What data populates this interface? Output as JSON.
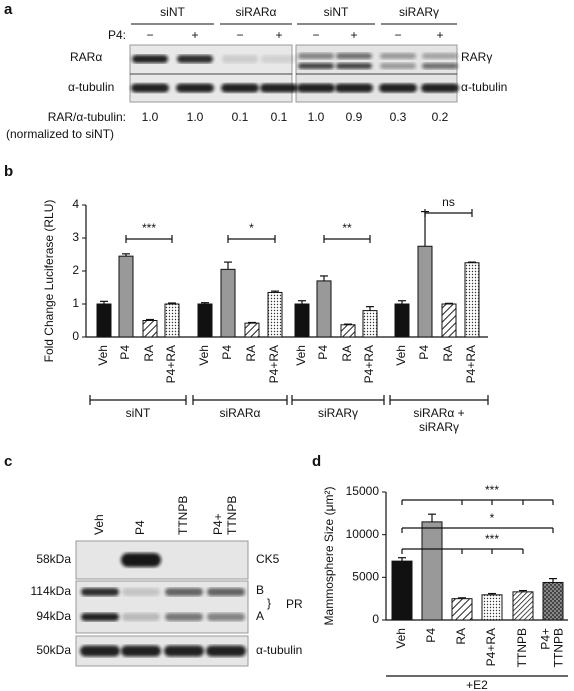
{
  "panel_labels": [
    "a",
    "b",
    "c",
    "d"
  ],
  "panel_a": {
    "headers": [
      "siNT",
      "siRARα",
      "siNT",
      "siRARγ"
    ],
    "p4_label": "P4:",
    "signs": [
      "−",
      "+",
      "−",
      "+",
      "−",
      "+",
      "−",
      "+"
    ],
    "left_labels": [
      "RARα",
      "α-tubulin"
    ],
    "right_labels": [
      "RARγ",
      "α-tubulin"
    ],
    "ratio_label": "RAR/α-tubulin:",
    "ratios": [
      "1.0",
      "1.0",
      "0.1",
      "0.1",
      "1.0",
      "0.9",
      "0.3",
      "0.2"
    ],
    "note": "(normalized to siNT)"
  },
  "panel_c": {
    "lanes": [
      [
        "Veh"
      ],
      [
        "P4"
      ],
      [
        "TTNPB"
      ],
      [
        "P4+",
        "TTNPB"
      ]
    ],
    "sizes": [
      "58kDa",
      "114kDa",
      "94kDa",
      "50kDa"
    ],
    "right_labels": [
      "CK5",
      "B",
      "A",
      "PR",
      "α-tubulin"
    ]
  },
  "chart_data": [
    {
      "type": "grouped-bar",
      "y_label": "Fold Change Luciferase (RLU)",
      "ylim": [
        0,
        4
      ],
      "yticks": [
        0,
        1,
        2,
        3,
        4
      ],
      "groups": [
        {
          "label_lines": [
            "siNT"
          ],
          "categories": [
            "Veh",
            "P4",
            "RA",
            "P4+RA"
          ],
          "values": [
            1.0,
            2.45,
            0.5,
            1.0
          ],
          "errors": [
            0.08,
            0.07,
            0.03,
            0.03
          ],
          "significance": "***"
        },
        {
          "label_lines": [
            "siRARα"
          ],
          "categories": [
            "Veh",
            "P4",
            "RA",
            "P4+RA"
          ],
          "values": [
            1.0,
            2.05,
            0.42,
            1.35
          ],
          "errors": [
            0.04,
            0.22,
            0.02,
            0.04
          ],
          "significance": "*"
        },
        {
          "label_lines": [
            "siRARγ"
          ],
          "categories": [
            "Veh",
            "P4",
            "RA",
            "P4+RA"
          ],
          "values": [
            1.0,
            1.7,
            0.37,
            0.8
          ],
          "errors": [
            0.1,
            0.15,
            0.02,
            0.12
          ],
          "significance": "**"
        },
        {
          "label_lines": [
            "siRARα +",
            "siRARγ"
          ],
          "categories": [
            "Veh",
            "P4",
            "RA",
            "P4+RA"
          ],
          "values": [
            1.0,
            2.75,
            1.0,
            2.25
          ],
          "errors": [
            0.1,
            1.05,
            0.02,
            0.02
          ],
          "significance": "ns"
        }
      ]
    },
    {
      "type": "bar",
      "y_label": "Mammosphere Size (μm²)",
      "ylim": [
        0,
        15000
      ],
      "yticks": [
        0,
        5000,
        10000,
        15000
      ],
      "categories": [
        [
          "Veh"
        ],
        [
          "P4"
        ],
        [
          "RA"
        ],
        [
          "P4+RA"
        ],
        [
          "TTNPB"
        ],
        [
          "P4+",
          "TTNPB"
        ]
      ],
      "values": [
        6900,
        11500,
        2500,
        2950,
        3300,
        4400
      ],
      "errors": [
        400,
        900,
        100,
        150,
        150,
        450
      ],
      "significance": [
        "***",
        "*",
        "***"
      ],
      "x_note": "+E2"
    }
  ]
}
